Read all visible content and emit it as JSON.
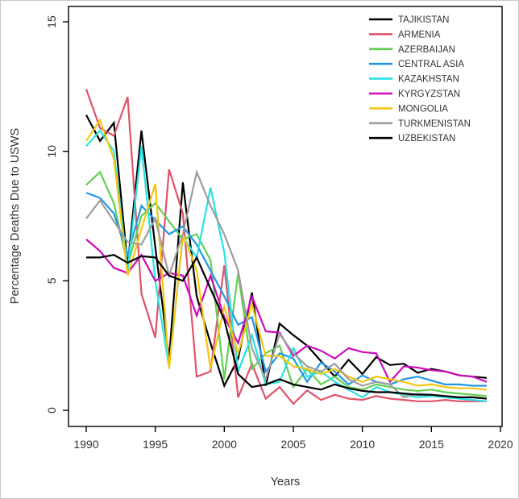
{
  "figure": {
    "background": "#ffffff",
    "border_color": "#c8c8c8",
    "axis_color": "#000000",
    "text_color": "#333333"
  },
  "chart_data": {
    "type": "line",
    "title": "",
    "xlabel": "Years",
    "ylabel": "Percentage Deaths Due to USWS",
    "x_ticks": [
      1990,
      1995,
      2000,
      2005,
      2010,
      2015,
      2020
    ],
    "y_ticks": [
      0,
      5,
      10,
      15
    ],
    "xlim": [
      1988.7,
      2020.3
    ],
    "ylim": [
      -0.65,
      15.6
    ],
    "grid": false,
    "legend_position": "top-right",
    "x": [
      1990,
      1991,
      1992,
      1993,
      1994,
      1995,
      1996,
      1997,
      1998,
      1999,
      2000,
      2001,
      2002,
      2003,
      2004,
      2005,
      2006,
      2007,
      2008,
      2009,
      2010,
      2011,
      2012,
      2013,
      2014,
      2015,
      2016,
      2017,
      2018,
      2019
    ],
    "series": [
      {
        "name": "TAJIKISTAN",
        "color": "#000000",
        "values": [
          11.4,
          10.4,
          11.1,
          5.6,
          10.8,
          6.3,
          2.0,
          8.8,
          4.4,
          2.6,
          0.95,
          2.0,
          4.55,
          0.95,
          3.35,
          2.9,
          2.5,
          1.9,
          1.3,
          1.95,
          1.4,
          2.05,
          1.75,
          1.8,
          1.45,
          1.6,
          1.5,
          1.35,
          1.3,
          1.25
        ]
      },
      {
        "name": "ARMENIA",
        "color": "#DF536B",
        "values": [
          12.4,
          10.9,
          10.6,
          12.1,
          4.5,
          2.8,
          9.3,
          7.6,
          1.3,
          1.5,
          5.6,
          0.5,
          1.8,
          0.45,
          0.9,
          0.25,
          0.77,
          0.4,
          0.6,
          0.45,
          0.4,
          0.55,
          0.45,
          0.4,
          0.35,
          0.35,
          0.4,
          0.35,
          0.35,
          0.35
        ]
      },
      {
        "name": "AZERBAIJAN",
        "color": "#61D04F",
        "values": [
          8.7,
          9.2,
          8.0,
          5.6,
          7.5,
          8.0,
          7.3,
          6.6,
          6.8,
          5.8,
          1.2,
          5.3,
          1.6,
          2.2,
          2.5,
          0.9,
          1.6,
          1.0,
          1.3,
          0.9,
          0.8,
          1.0,
          0.9,
          0.8,
          0.75,
          0.8,
          0.7,
          0.65,
          0.6,
          0.55
        ]
      },
      {
        "name": "CENTRAL ASIA",
        "color": "#2297E6",
        "values": [
          8.4,
          8.2,
          7.6,
          6.0,
          7.9,
          7.35,
          6.8,
          7.1,
          6.4,
          5.4,
          4.4,
          3.3,
          3.6,
          1.5,
          2.2,
          2.0,
          1.1,
          1.85,
          1.5,
          1.0,
          1.35,
          1.1,
          1.0,
          1.2,
          1.3,
          1.15,
          1.0,
          1.0,
          0.95,
          0.95
        ]
      },
      {
        "name": "KAZAKHSTAN",
        "color": "#28E2E5",
        "values": [
          10.2,
          10.8,
          10.0,
          5.4,
          10.2,
          5.0,
          1.65,
          6.7,
          5.9,
          8.6,
          6.1,
          1.5,
          2.9,
          1.0,
          1.1,
          2.4,
          1.3,
          1.5,
          1.1,
          0.8,
          0.5,
          0.9,
          0.7,
          0.6,
          0.5,
          0.55,
          0.5,
          0.45,
          0.4,
          0.35
        ]
      },
      {
        "name": "KYRGYZSTAN",
        "color": "#CD0BBC",
        "values": [
          6.6,
          6.15,
          5.5,
          5.3,
          6.0,
          5.0,
          5.3,
          5.2,
          3.65,
          5.2,
          3.6,
          2.6,
          4.4,
          3.05,
          3.0,
          2.1,
          2.5,
          2.3,
          2.0,
          2.4,
          2.25,
          2.2,
          1.1,
          1.7,
          1.65,
          1.55,
          1.5,
          1.35,
          1.3,
          1.1
        ]
      },
      {
        "name": "MONGOLIA",
        "color": "#F5C710",
        "values": [
          10.4,
          11.2,
          9.7,
          5.2,
          7.0,
          8.75,
          1.6,
          6.8,
          5.4,
          1.6,
          4.0,
          2.2,
          4.1,
          2.1,
          2.1,
          1.7,
          1.6,
          1.4,
          1.6,
          1.3,
          1.1,
          1.3,
          1.2,
          1.1,
          0.95,
          1.0,
          0.9,
          0.85,
          0.85,
          0.8
        ]
      },
      {
        "name": "TURKMENISTAN",
        "color": "#9E9E9E",
        "values": [
          7.4,
          8.1,
          7.3,
          6.5,
          6.4,
          7.4,
          5.2,
          6.8,
          9.2,
          7.9,
          6.8,
          5.4,
          2.4,
          1.2,
          2.95,
          2.2,
          1.7,
          1.5,
          1.8,
          1.2,
          0.95,
          1.1,
          1.0,
          0.5,
          0.65,
          0.6,
          0.55,
          0.5,
          0.5,
          0.45
        ]
      },
      {
        "name": "UZBEKISTAN",
        "color": "#000000",
        "values": [
          5.9,
          5.9,
          6.0,
          5.7,
          5.95,
          5.9,
          5.2,
          5.0,
          5.9,
          4.7,
          3.5,
          1.4,
          0.9,
          1.0,
          1.2,
          1.0,
          0.9,
          0.8,
          1.0,
          0.85,
          0.75,
          0.7,
          0.7,
          0.65,
          0.6,
          0.6,
          0.55,
          0.5,
          0.5,
          0.45
        ]
      }
    ]
  }
}
